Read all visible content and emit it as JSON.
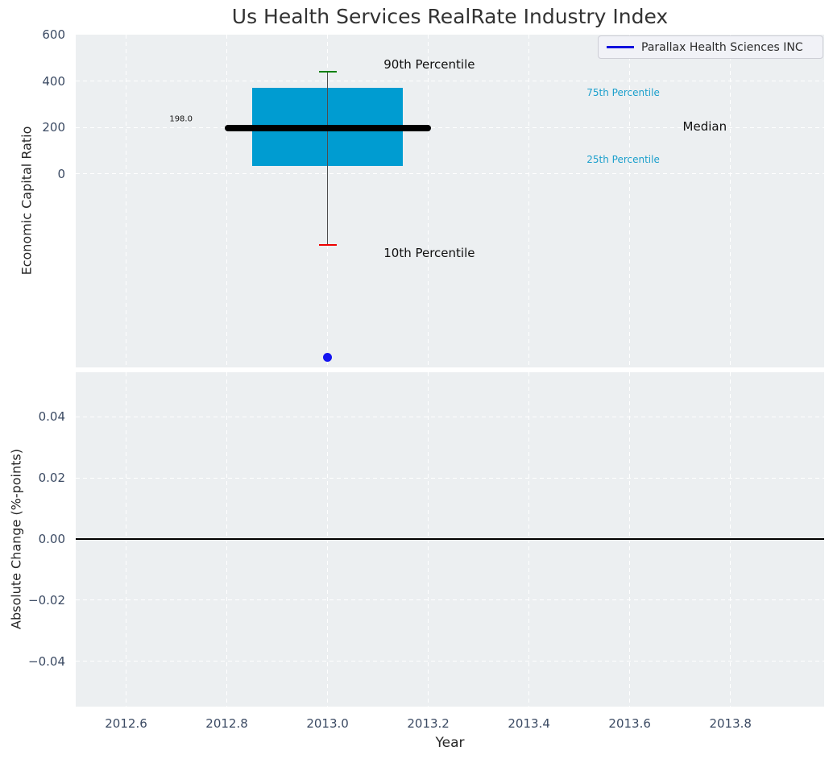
{
  "figure": {
    "title": "Us Health Services RealRate Industry Index",
    "colors": {
      "background": "#ffffff",
      "plot_bg": "#eceff1",
      "grid": "#ffffff",
      "tick_label": "#3b4a63",
      "title": "#333333",
      "axis_label": "#262626",
      "box_fill": "#009cd1",
      "percentile_label": "#1b9fcc",
      "median_line": "#000000",
      "whisker": "#4d4d4d",
      "cap_upper": "#008000",
      "cap_lower": "#ee0000",
      "company_point": "#1414f0",
      "legend_line": "#1111dd",
      "zero_line": "#000000"
    }
  },
  "legend": {
    "label": "Parallax Health Sciences INC"
  },
  "chart_data": [
    {
      "type": "boxplot",
      "title": "Us Health Services RealRate Industry Index",
      "ylabel": "Economic Capital Ratio",
      "xlim": [
        2012.5,
        2013.986
      ],
      "ylim": [
        -836,
        600
      ],
      "grid": "white-dashed",
      "legend_position": "upper right",
      "yticks": {
        "values": [
          600,
          400,
          200,
          0
        ],
        "labels": [
          "600",
          "400",
          "200",
          "0"
        ]
      },
      "ygridlines": [
        400,
        200,
        0
      ],
      "box": {
        "x": 2013.0,
        "p10": -308,
        "q1": 32,
        "median": 198.0,
        "q3": 372,
        "p90": 440,
        "median_label": "198.0",
        "box_half_width": 0.1495,
        "median_half_width": 0.2,
        "cap_half_width": 0.0176
      },
      "company_point": {
        "name": "Parallax Health Sciences INC",
        "x": 2013.0,
        "y": -794
      },
      "annotations": [
        {
          "text": "198.0",
          "x": 2012.709,
          "y": 235,
          "size": 10,
          "color": "#111111"
        },
        {
          "text": "90th Percentile",
          "x": 2013.202,
          "y": 471,
          "size": 15,
          "color": "#111111"
        },
        {
          "text": "10th Percentile",
          "x": 2013.202,
          "y": -342,
          "size": 15,
          "color": "#111111"
        },
        {
          "text": "75th Percentile",
          "x": 2013.587,
          "y": 350,
          "size": 12,
          "color": "#1b9fcc"
        },
        {
          "text": "25th Percentile",
          "x": 2013.587,
          "y": 61,
          "size": 12,
          "color": "#1b9fcc"
        },
        {
          "text": "Median",
          "x": 2013.749,
          "y": 204,
          "size": 15,
          "color": "#111111"
        }
      ]
    },
    {
      "type": "line",
      "ylabel": "Absolute Change (%-points)",
      "xlabel": "Year",
      "xlim": [
        2012.5,
        2013.986
      ],
      "ylim": [
        -0.0548,
        0.0546
      ],
      "grid": "white-dashed",
      "yticks": {
        "values": [
          0.04,
          0.02,
          0,
          -0.02,
          -0.04
        ],
        "labels": [
          "0.04",
          "0.02",
          "0.00",
          "−0.02",
          "−0.04"
        ]
      },
      "xticks": {
        "values": [
          2012.6,
          2012.8,
          2013.0,
          2013.2,
          2013.4,
          2013.6,
          2013.8
        ],
        "labels": [
          "2012.6",
          "2012.8",
          "2013.0",
          "2013.2",
          "2013.4",
          "2013.6",
          "2013.8"
        ]
      },
      "zero_line": 0.0,
      "series": []
    }
  ]
}
